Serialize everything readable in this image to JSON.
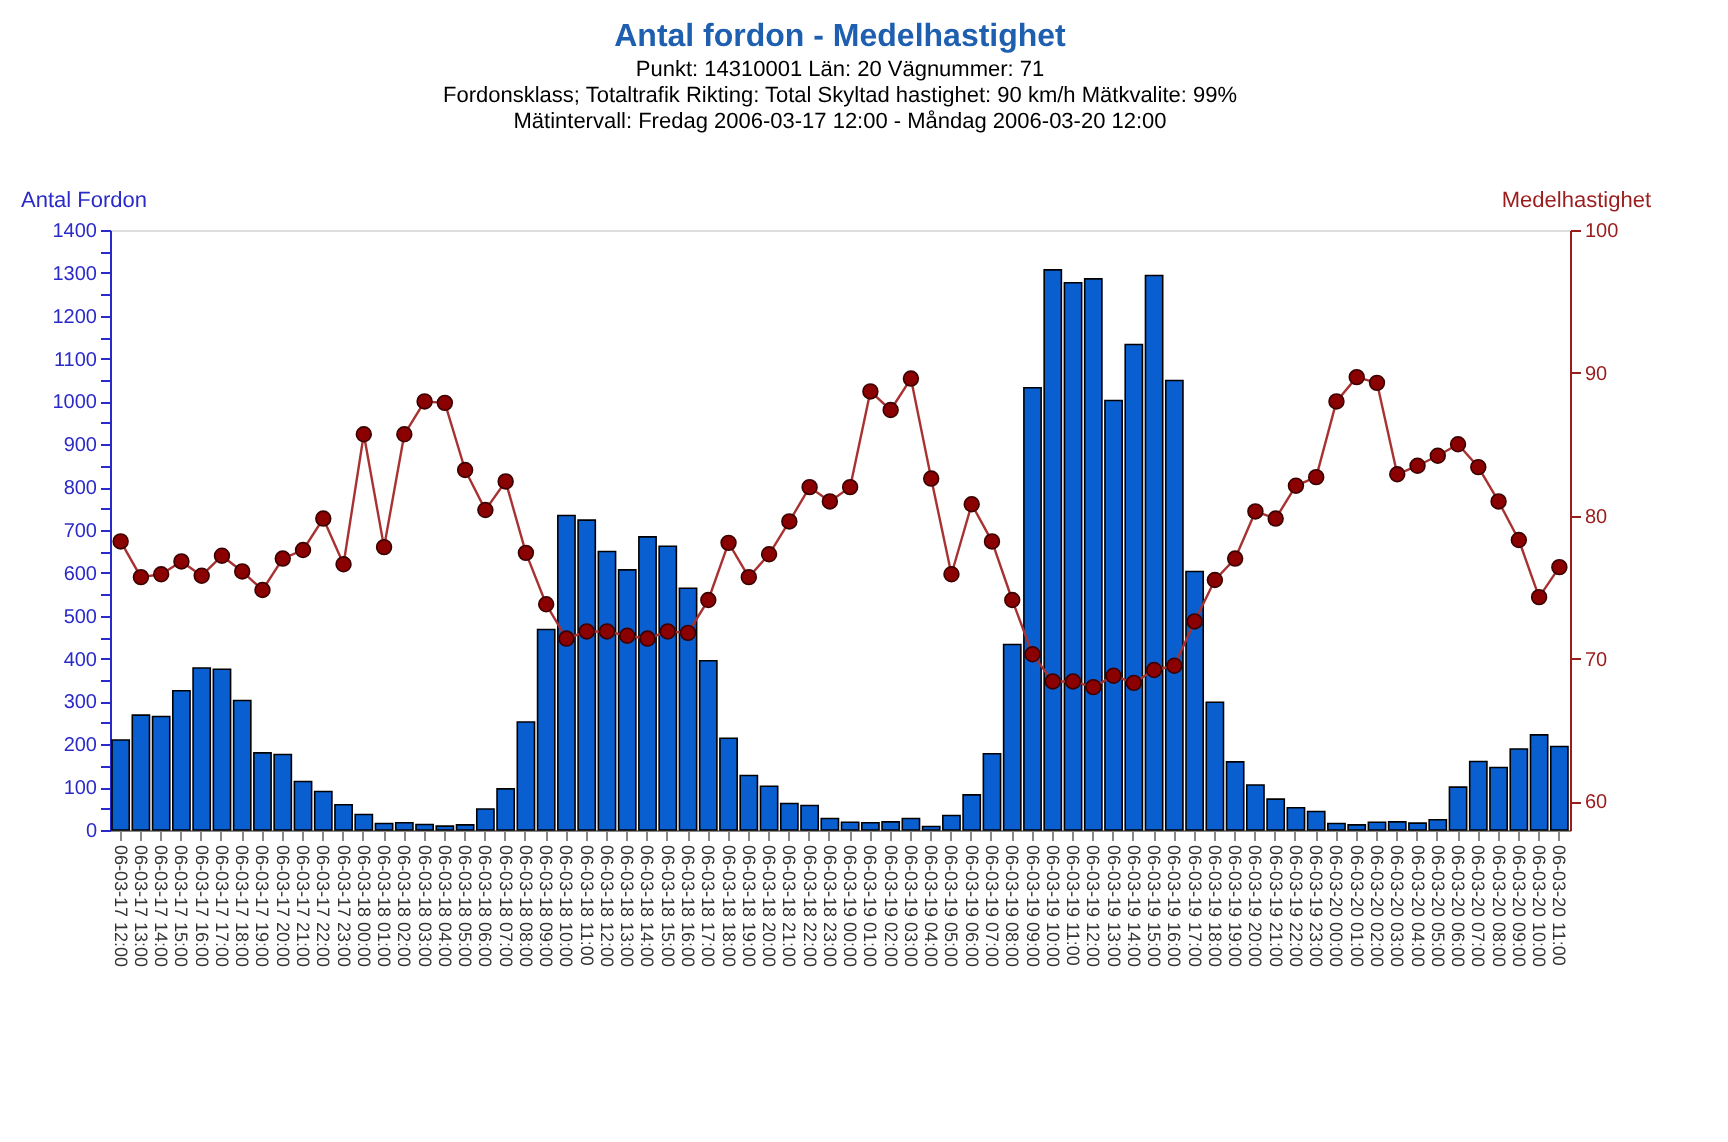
{
  "chart_data": {
    "type": "bar",
    "title": "Antal fordon - Medelhastighet",
    "subtitle": "Punkt: 14310001  Län: 20  Vägnummer: 71\nFordonsklass; Totaltrafik  Rikting: Total  Skyltad hastighet: 90 km/h  Mätkvalite: 99%\nMätintervall: Fredag 2006-03-17 12:00 - Måndag 2006-03-20 12:00",
    "ylabel": "Antal Fordon",
    "y2label": "Medelhastighet",
    "categories": [
      "06-03-17 12:00",
      "06-03-17 13:00",
      "06-03-17 14:00",
      "06-03-17 15:00",
      "06-03-17 16:00",
      "06-03-17 17:00",
      "06-03-17 18:00",
      "06-03-17 19:00",
      "06-03-17 20:00",
      "06-03-17 21:00",
      "06-03-17 22:00",
      "06-03-17 23:00",
      "06-03-18 00:00",
      "06-03-18 01:00",
      "06-03-18 02:00",
      "06-03-18 03:00",
      "06-03-18 04:00",
      "06-03-18 05:00",
      "06-03-18 06:00",
      "06-03-18 07:00",
      "06-03-18 08:00",
      "06-03-18 09:00",
      "06-03-18 10:00",
      "06-03-18 11:00",
      "06-03-18 12:00",
      "06-03-18 13:00",
      "06-03-18 14:00",
      "06-03-18 15:00",
      "06-03-18 16:00",
      "06-03-18 17:00",
      "06-03-18 18:00",
      "06-03-18 19:00",
      "06-03-18 20:00",
      "06-03-18 21:00",
      "06-03-18 22:00",
      "06-03-18 23:00",
      "06-03-19 00:00",
      "06-03-19 01:00",
      "06-03-19 02:00",
      "06-03-19 03:00",
      "06-03-19 04:00",
      "06-03-19 05:00",
      "06-03-19 06:00",
      "06-03-19 07:00",
      "06-03-19 08:00",
      "06-03-19 09:00",
      "06-03-19 10:00",
      "06-03-19 11:00",
      "06-03-19 12:00",
      "06-03-19 13:00",
      "06-03-19 14:00",
      "06-03-19 15:00",
      "06-03-19 16:00",
      "06-03-19 17:00",
      "06-03-19 18:00",
      "06-03-19 19:00",
      "06-03-19 20:00",
      "06-03-19 21:00",
      "06-03-19 22:00",
      "06-03-19 23:00",
      "06-03-20 00:00",
      "06-03-20 01:00",
      "06-03-20 02:00",
      "06-03-20 03:00",
      "06-03-20 04:00",
      "06-03-20 05:00",
      "06-03-20 06:00",
      "06-03-20 07:00",
      "06-03-20 08:00",
      "06-03-20 09:00",
      "06-03-20 10:00",
      "06-03-20 11:00"
    ],
    "series": [
      {
        "color": "#0a5fd0",
        "values": [
          210,
          268,
          265,
          325,
          378,
          375,
          302,
          180,
          176,
          113,
          90,
          59,
          36,
          15,
          17,
          13,
          9,
          12,
          49,
          96,
          252,
          468,
          734,
          723,
          650,
          607,
          684,
          662,
          564,
          395,
          214,
          127,
          102,
          62,
          57,
          27,
          18,
          17,
          19,
          27,
          8,
          34,
          82,
          178,
          433,
          1032,
          1307,
          1277,
          1286,
          1002,
          1133,
          1294,
          1049,
          603,
          298,
          159,
          105,
          72,
          52,
          43,
          15,
          12,
          18,
          19,
          16,
          24,
          100,
          160,
          146,
          189,
          222,
          195
        ]
      },
      {
        "type": "line",
        "axis": "y2",
        "color": "#8b0000",
        "marker": "circle",
        "line_style": "solid",
        "values": [
          78.2,
          75.7,
          75.9,
          76.8,
          75.8,
          77.2,
          76.1,
          74.8,
          77.0,
          77.6,
          79.8,
          76.6,
          85.7,
          77.8,
          85.7,
          88.0,
          87.9,
          83.2,
          80.4,
          82.4,
          77.4,
          73.8,
          71.4,
          71.9,
          71.9,
          71.6,
          71.4,
          71.9,
          71.8,
          74.1,
          78.1,
          75.7,
          77.3,
          79.6,
          82.0,
          81.0,
          82.0,
          88.7,
          87.4,
          89.6,
          82.6,
          75.9,
          80.8,
          78.2,
          74.1,
          70.3,
          68.4,
          68.4,
          68.0,
          68.8,
          68.3,
          69.2,
          69.5,
          72.6,
          75.5,
          77.0,
          80.3,
          79.8,
          82.1,
          82.7,
          88.0,
          89.7,
          89.3,
          82.9,
          83.5,
          84.2,
          85.0,
          83.4,
          81.0,
          78.3,
          74.3,
          76.4
        ]
      }
    ],
    "ylim": [
      0,
      1400
    ],
    "yticks": [
      0,
      {
        "value": 50,
        "label": null
      },
      100,
      {
        "value": 150,
        "label": null
      },
      200,
      {
        "value": 250,
        "label": null
      },
      300,
      {
        "value": 350,
        "label": null
      },
      400,
      {
        "value": 450,
        "label": null
      },
      500,
      {
        "value": 550,
        "label": null
      },
      600,
      {
        "value": 650,
        "label": null
      },
      700,
      {
        "value": 750,
        "label": null
      },
      800,
      {
        "value": 850,
        "label": null
      },
      900,
      {
        "value": 950,
        "label": null
      },
      1000,
      {
        "value": 1050,
        "label": null
      },
      1100,
      {
        "value": 1150,
        "label": null
      },
      1200,
      {
        "value": 1250,
        "label": null
      },
      1300,
      {
        "value": 1350,
        "label": null
      },
      1400
    ],
    "y2lim": [
      58,
      100
    ],
    "y2ticks": [
      60,
      70,
      80,
      90,
      100
    ],
    "grid": false
  }
}
